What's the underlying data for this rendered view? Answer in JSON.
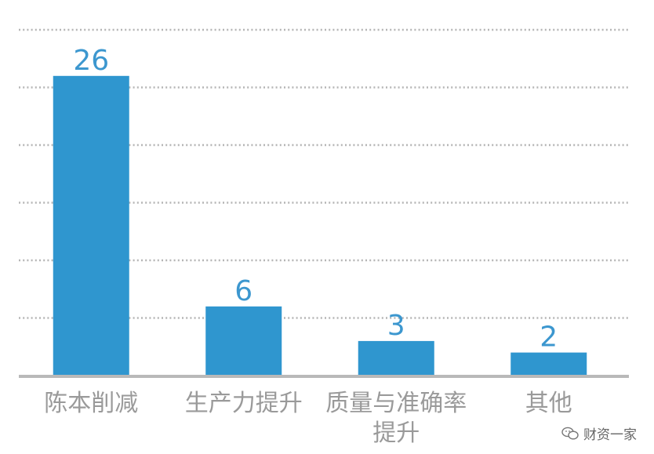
{
  "chart_data": {
    "type": "bar",
    "categories": [
      "陈本削减",
      "生产力提升",
      "质量与准确率\n提升",
      "其他"
    ],
    "values": [
      26,
      6,
      3,
      2
    ],
    "title": "",
    "xlabel": "",
    "ylabel": "",
    "ylim": [
      0,
      30
    ],
    "grid": true,
    "data_labels": true,
    "colors": {
      "bar": "#2f96cf",
      "data_label": "#3c97cf",
      "grid": "#b5b5b5",
      "axis": "#b9b9b9"
    }
  },
  "watermark": {
    "text": "财资一家",
    "icon": "wechat-icon"
  }
}
